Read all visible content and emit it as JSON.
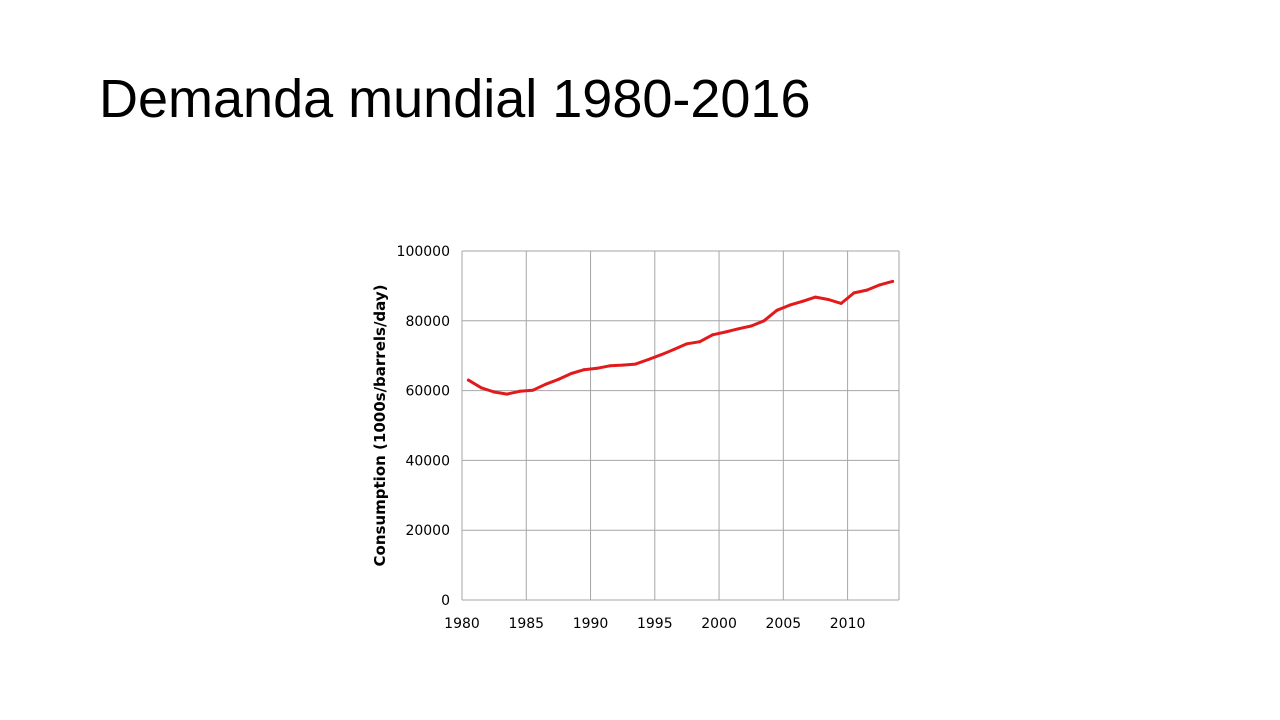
{
  "slide": {
    "title": "Demanda mundial 1980-2016"
  },
  "chart_data": {
    "type": "line",
    "title": "",
    "xlabel": "",
    "ylabel": "Consumption (1000s/barrels/day)",
    "xlim": [
      1980,
      2014
    ],
    "ylim": [
      0,
      100000
    ],
    "x_ticks": [
      1980,
      1985,
      1990,
      1995,
      2000,
      2005,
      2010
    ],
    "y_ticks": [
      0,
      20000,
      40000,
      60000,
      80000,
      100000
    ],
    "grid": true,
    "legend": "none",
    "series": [
      {
        "color": "#e31a1c",
        "x": [
          1980.5,
          1981.5,
          1982.5,
          1983.5,
          1984.5,
          1985.5,
          1986.5,
          1987.5,
          1988.5,
          1989.5,
          1990.5,
          1991.5,
          1992.5,
          1993.5,
          1994.5,
          1995.5,
          1996.5,
          1997.5,
          1998.5,
          1999.5,
          2000.5,
          2001.5,
          2002.5,
          2003.5,
          2004.5,
          2005.5,
          2006.5,
          2007.5,
          2008.5,
          2009.5,
          2010.5,
          2011.5,
          2012.5,
          2013.5
        ],
        "y": [
          63000,
          60800,
          59600,
          59000,
          59800,
          60100,
          61800,
          63200,
          64900,
          66000,
          66400,
          67100,
          67300,
          67600,
          68900,
          70300,
          71800,
          73400,
          74000,
          76000,
          76800,
          77700,
          78500,
          80000,
          83000,
          84500,
          85600,
          86800,
          86100,
          85000,
          88000,
          88800,
          90300,
          91300
        ]
      }
    ]
  }
}
